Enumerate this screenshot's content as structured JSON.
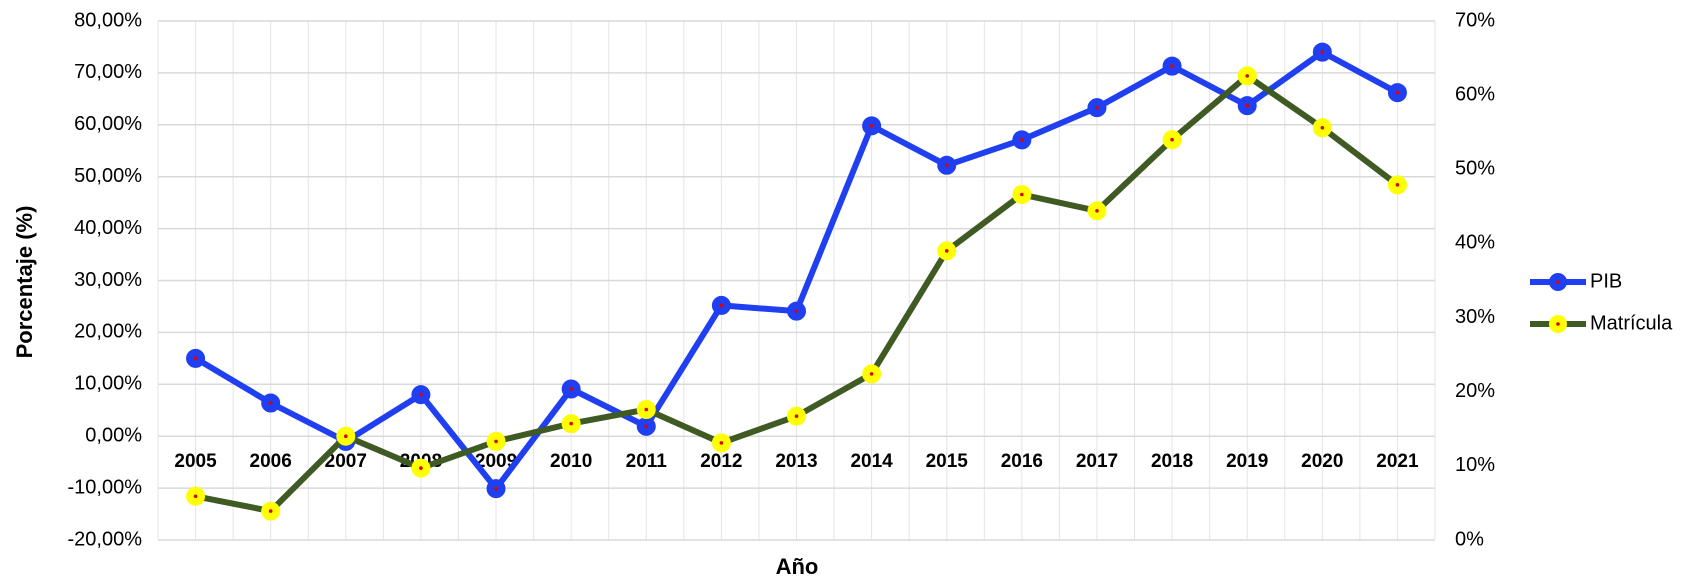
{
  "chart_data": {
    "type": "line",
    "x_label": "Año",
    "y_label": "Porcentaje (%)",
    "categories": [
      "2005",
      "2006",
      "2007",
      "2008",
      "2009",
      "2010",
      "2011",
      "2012",
      "2013",
      "2014",
      "2015",
      "2016",
      "2017",
      "2018",
      "2019",
      "2020",
      "2021"
    ],
    "series": [
      {
        "name": "PIB",
        "color": "#1f3ff0",
        "marker_color": "#1f3ff0",
        "axis": "y",
        "values": [
          15.0,
          6.4,
          -1.0,
          8.0,
          -10.1,
          9.1,
          1.9,
          25.2,
          24.1,
          59.8,
          52.2,
          57.1,
          63.3,
          71.3,
          63.7,
          74.0,
          66.2
        ]
      },
      {
        "name": "Matrícula",
        "color": "#3f5a23",
        "marker_color": "#ffff00",
        "axis": "y2",
        "values": [
          5.9,
          3.9,
          14.0,
          9.7,
          13.3,
          15.7,
          17.6,
          13.1,
          16.7,
          22.4,
          39.0,
          46.6,
          44.4,
          54.0,
          62.6,
          55.6,
          47.9
        ]
      }
    ],
    "ylim": [
      -20,
      80
    ],
    "yticks": [
      {
        "value": -20,
        "label": "-20,00%"
      },
      {
        "value": -10,
        "label": "-10,00%"
      },
      {
        "value": 0,
        "label": "0,00%"
      },
      {
        "value": 10,
        "label": "10,00%"
      },
      {
        "value": 20,
        "label": "20,00%"
      },
      {
        "value": 30,
        "label": "30,00%"
      },
      {
        "value": 40,
        "label": "40,00%"
      },
      {
        "value": 50,
        "label": "50,00%"
      },
      {
        "value": 60,
        "label": "60,00%"
      },
      {
        "value": 70,
        "label": "70,00%"
      },
      {
        "value": 80,
        "label": "80,00%"
      }
    ],
    "y2lim": [
      0,
      70
    ],
    "y2ticks": [
      {
        "value": 0,
        "label": "0%"
      },
      {
        "value": 10,
        "label": "10%"
      },
      {
        "value": 20,
        "label": "20%"
      },
      {
        "value": 30,
        "label": "30%"
      },
      {
        "value": 40,
        "label": "40%"
      },
      {
        "value": 50,
        "label": "50%"
      },
      {
        "value": 60,
        "label": "60%"
      },
      {
        "value": 70,
        "label": "70%"
      }
    ],
    "grid": true,
    "legend": "right"
  }
}
